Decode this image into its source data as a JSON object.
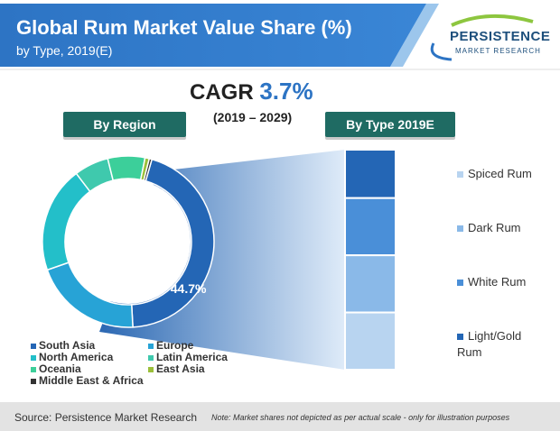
{
  "header": {
    "title": "Global Rum Market Value Share (%)",
    "subtitle": "by Type, 2019(E)"
  },
  "logo": {
    "line1": "PERSISTENCE",
    "line2": "MARKET RESEARCH"
  },
  "cagr": {
    "label": "CAGR",
    "value": "3.7%",
    "range": "(2019 – 2029)"
  },
  "sections": {
    "region_label": "By Region",
    "type_label": "By Type 2019E"
  },
  "colors": {
    "banner": "#2d74c4",
    "pill": "#1f6b63"
  },
  "chart_data": [
    {
      "type": "pie",
      "categories": [
        "South Asia",
        "Europe",
        "North America",
        "Latin America",
        "Oceania",
        "East Asia",
        "Middle East & Africa"
      ],
      "values": [
        44.7,
        20.5,
        20.0,
        6.5,
        7.0,
        0.8,
        0.5
      ],
      "colors": [
        "#2466b5",
        "#27a3d6",
        "#23bfc9",
        "#3fc9ad",
        "#3ccf9a",
        "#9bbf3a",
        "#333333"
      ],
      "data_labels": [
        "44.7%",
        "",
        "",
        "",
        "",
        "",
        ""
      ],
      "title": "By Region",
      "legend_placement": "bottom"
    },
    {
      "type": "bar",
      "title": "By Type 2019E",
      "categories": [
        "Spiced Rum",
        "Dark Rum",
        "White Rum",
        "Light/Gold Rum"
      ],
      "values": [
        11,
        13,
        13,
        13
      ],
      "colors": [
        "#2466b5",
        "#4a8fd8",
        "#8ab9e8",
        "#b8d4f0"
      ],
      "labels": [
        "Spiced Rum",
        "Dark Rum",
        "White Rum",
        "Light/Gold Rum"
      ],
      "label_colors": [
        "#b8d4f0",
        "#8ab9e8",
        "#4a8fd8",
        "#2466b5"
      ],
      "stacked": true,
      "legend_placement": "right"
    }
  ],
  "footer": {
    "source": "Source: Persistence Market Research",
    "note": "Note: Market shares not depicted as per actual scale - only for illustration purposes"
  }
}
